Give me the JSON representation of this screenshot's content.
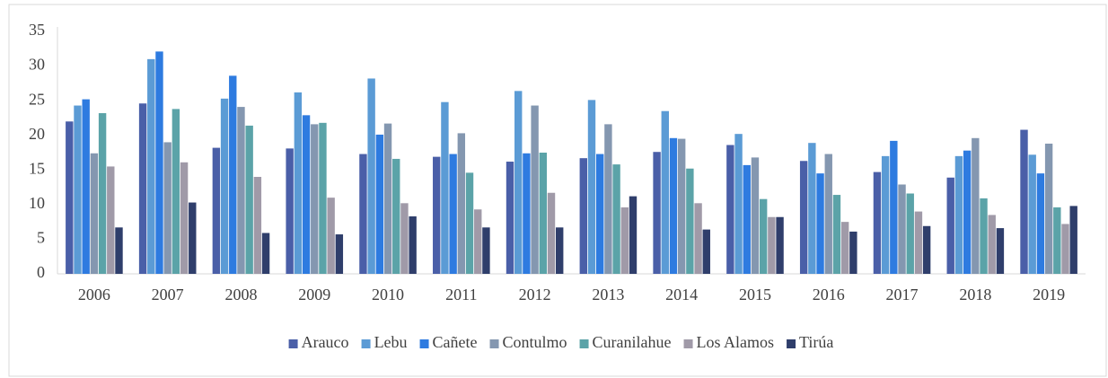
{
  "chart_data": {
    "type": "bar",
    "categories": [
      "2006",
      "2007",
      "2008",
      "2009",
      "2010",
      "2011",
      "2012",
      "2013",
      "2014",
      "2015",
      "2016",
      "2017",
      "2018",
      "2019"
    ],
    "series": [
      {
        "name": "Arauco",
        "color": "#4a5fa8",
        "values": [
          22,
          24.6,
          18.2,
          18.1,
          17.3,
          16.9,
          16.2,
          16.7,
          17.6,
          18.6,
          16.3,
          14.7,
          13.9,
          20.8
        ]
      },
      {
        "name": "Lebu",
        "color": "#5b9bd5",
        "values": [
          24.3,
          31,
          25.3,
          26.2,
          28.2,
          24.8,
          26.4,
          25.1,
          23.5,
          20.2,
          18.9,
          17,
          17,
          17.2
        ]
      },
      {
        "name": "Cañete",
        "color": "#2e7be0",
        "values": [
          25.2,
          32.1,
          28.6,
          22.9,
          20.1,
          17.3,
          17.4,
          17.3,
          19.6,
          15.7,
          14.5,
          19.2,
          17.8,
          14.5
        ]
      },
      {
        "name": "Contulmo",
        "color": "#8497b0",
        "values": [
          17.4,
          19,
          24.1,
          21.6,
          21.7,
          20.3,
          24.3,
          21.6,
          19.5,
          16.8,
          17.3,
          12.9,
          19.6,
          18.8
        ]
      },
      {
        "name": "Curanilahue",
        "color": "#5ba3a8",
        "values": [
          23.2,
          23.8,
          21.4,
          21.8,
          16.6,
          14.6,
          17.5,
          15.8,
          15.2,
          10.8,
          11.4,
          11.6,
          10.9,
          9.6
        ]
      },
      {
        "name": "Los Alamos",
        "color": "#a09aa8",
        "values": [
          15.5,
          16.1,
          14,
          11,
          10.2,
          9.3,
          11.7,
          9.6,
          10.2,
          8.2,
          7.5,
          9,
          8.5,
          7.2
        ]
      },
      {
        "name": "Tirúa",
        "color": "#2f3e6b",
        "values": [
          6.7,
          10.3,
          5.9,
          5.7,
          8.3,
          6.7,
          6.7,
          11.2,
          6.4,
          8.2,
          6.1,
          6.9,
          6.6,
          9.8
        ]
      }
    ],
    "ylim": [
      0,
      35
    ],
    "yticks": [
      0,
      5,
      10,
      15,
      20,
      25,
      30,
      35
    ],
    "grid": false,
    "legend": "bottom"
  }
}
